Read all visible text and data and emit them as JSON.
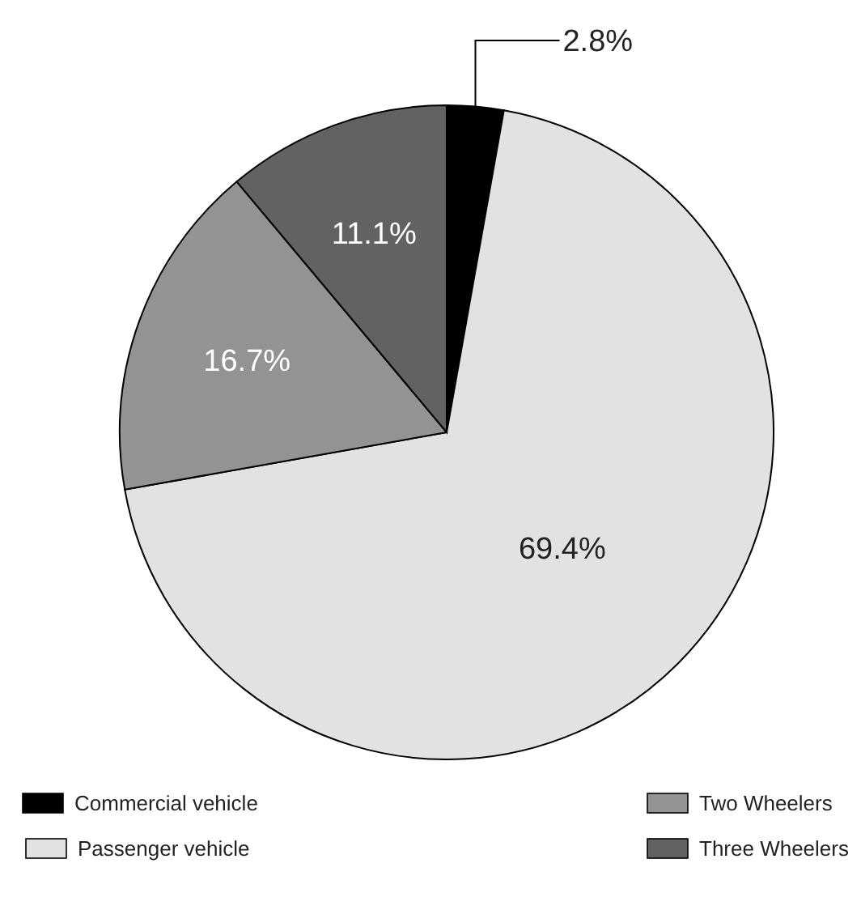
{
  "chart_data": {
    "type": "pie",
    "categories": [
      "Commercial vehicle",
      "Passenger vehicle",
      "Two Wheelers",
      "Three Wheelers"
    ],
    "values": [
      2.8,
      69.4,
      16.7,
      11.1
    ],
    "colors": [
      "#000000",
      "#e2e2e4",
      "#939393",
      "#626262"
    ],
    "value_labels": [
      "2.8%",
      "69.4%",
      "16.7%",
      "11.1%"
    ],
    "legend": "bottom"
  }
}
